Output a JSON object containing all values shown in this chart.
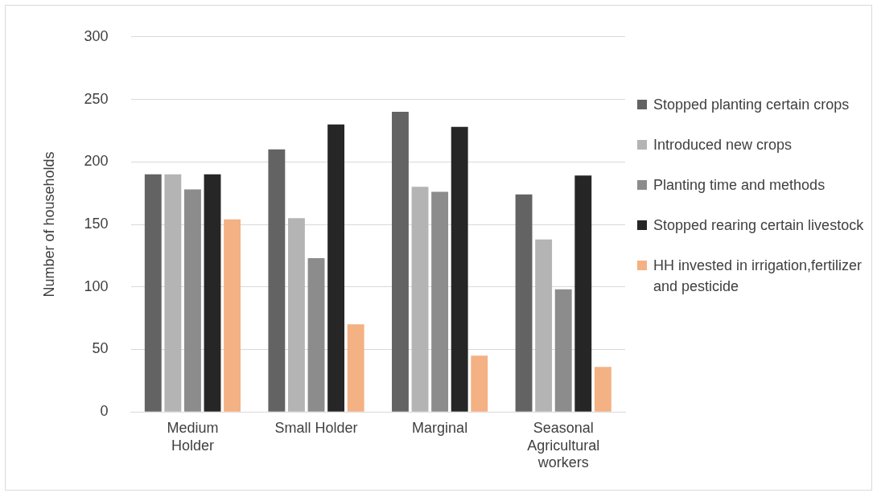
{
  "chart_data": {
    "type": "bar",
    "ylabel": "Number of households",
    "categories": [
      "Medium Holder",
      "Small Holder",
      "Marginal",
      "Seasonal Agricultural workers"
    ],
    "series": [
      {
        "name": "Stopped planting certain crops",
        "color": "#636363",
        "values": [
          190,
          210,
          240,
          174
        ]
      },
      {
        "name": "Introduced new crops",
        "color": "#b4b4b4",
        "values": [
          190,
          155,
          180,
          138
        ]
      },
      {
        "name": "Planting time and methods",
        "color": "#8c8c8c",
        "values": [
          178,
          123,
          176,
          98
        ]
      },
      {
        "name": "Stopped rearing certain livestock",
        "color": "#262626",
        "values": [
          190,
          230,
          228,
          189
        ]
      },
      {
        "name": "HH invested in irrigation,fertilizer and pesticide",
        "color": "#f4b183",
        "values": [
          154,
          70,
          45,
          36
        ]
      }
    ],
    "ylim": [
      0,
      300
    ],
    "yticks": [
      0,
      50,
      100,
      150,
      200,
      250,
      300
    ],
    "grid": "y",
    "legend": "right"
  }
}
